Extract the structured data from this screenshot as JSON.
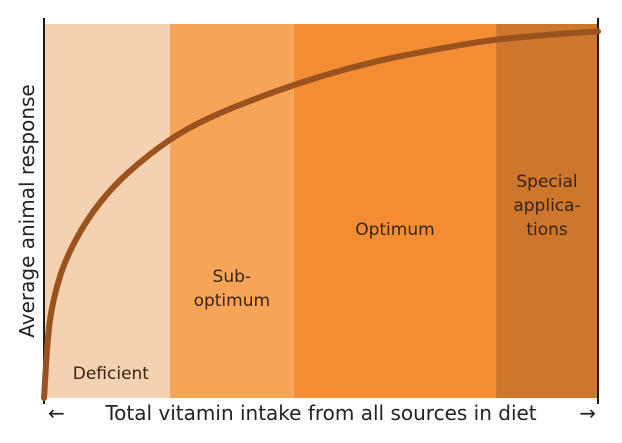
{
  "chart_data": {
    "type": "area",
    "title": "",
    "xlabel": "Total vitamin intake from all sources in diet",
    "ylabel": "Average animal response",
    "xlim": [
      0,
      100
    ],
    "ylim": [
      0,
      100
    ],
    "grid": false,
    "legend": "none",
    "bands": [
      {
        "name": "deficient",
        "label_lines": [
          "Deficient"
        ],
        "x_start": 0,
        "x_end": 22.7,
        "color": "#f4d1b0"
      },
      {
        "name": "sub-optimum",
        "label_lines": [
          "Sub-",
          "optimum"
        ],
        "x_start": 22.7,
        "x_end": 45.1,
        "color": "#f6a458"
      },
      {
        "name": "optimum",
        "label_lines": [
          "Optimum"
        ],
        "x_start": 45.1,
        "x_end": 81.6,
        "color": "#f28d33"
      },
      {
        "name": "special-applications",
        "label_lines": [
          "Special",
          "applica-",
          "tions"
        ],
        "x_start": 81.6,
        "x_end": 100,
        "color": "#cc762e"
      }
    ],
    "series": [
      {
        "name": "response-curve",
        "color": "#9a531e",
        "x": [
          0,
          1,
          3,
          6,
          10,
          15,
          22.7,
          30,
          40,
          50,
          60,
          70,
          80,
          90,
          100
        ],
        "y": [
          0,
          20,
          33,
          43,
          52,
          60,
          69,
          75,
          81,
          86,
          90,
          93,
          95.5,
          97,
          98
        ]
      }
    ],
    "x_axis_arrows": {
      "left": "←",
      "right": "→"
    }
  }
}
